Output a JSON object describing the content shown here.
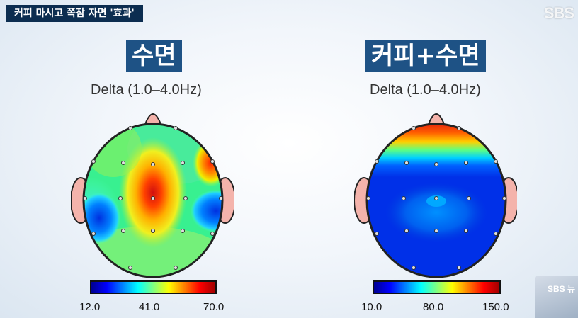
{
  "caption": "커피 마시고 쪽잠 자면 '효과'",
  "logo": "SBS",
  "thumbnail": {
    "label": "SBS 뉴"
  },
  "panels": [
    {
      "title": "수면",
      "subtitle": "Delta (1.0–4.0Hz)",
      "scale": {
        "min": "12.0",
        "mid": "41.0",
        "max": "70.0"
      }
    },
    {
      "title": "커피+수면",
      "subtitle": "Delta (1.0–4.0Hz)",
      "scale": {
        "min": "10.0",
        "mid": "80.0",
        "max": "150.0"
      }
    }
  ],
  "colors": {
    "caption_bg": "#0c2d50",
    "title_bg": "#1e5285",
    "colormap": [
      "#00008f",
      "#0000ff",
      "#0080ff",
      "#00ffff",
      "#80ff80",
      "#ffff00",
      "#ff8000",
      "#ff0000",
      "#800000"
    ]
  }
}
